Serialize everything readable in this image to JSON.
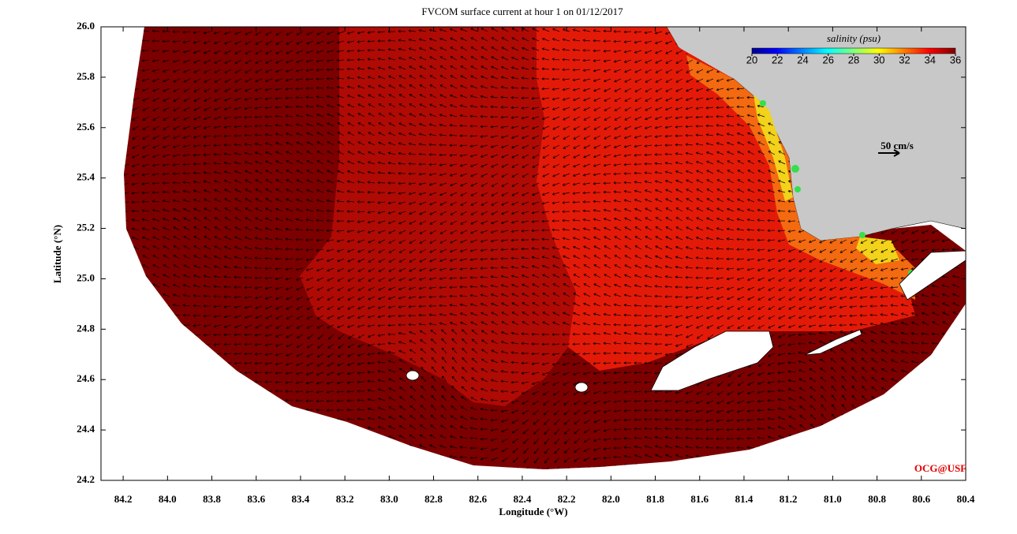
{
  "chart_data": {
    "type": "quiver",
    "title": "FVCOM surface current at hour 1 on 01/12/2017",
    "xlabel": "Longitude (°W)",
    "ylabel": "Latitude (°N)",
    "xlim": [
      84.3,
      80.4
    ],
    "xticks": [
      84.2,
      {
        "value": 84,
        "label": "84.0"
      },
      83.8,
      83.6,
      83.4,
      83.2,
      {
        "value": 83,
        "label": "83.0"
      },
      82.8,
      82.6,
      82.4,
      82.2,
      {
        "value": 82,
        "label": "82.0"
      },
      81.8,
      81.6,
      81.4,
      81.2,
      {
        "value": 81,
        "label": "81.0"
      },
      80.8,
      80.6,
      80.4
    ],
    "ylim": [
      24.2,
      26.0
    ],
    "yticks": [
      24.2,
      24.4,
      24.6,
      24.8,
      {
        "value": 25,
        "label": "25.0"
      },
      25.2,
      25.4,
      25.6,
      25.8,
      {
        "value": 26,
        "label": "26.0"
      }
    ],
    "colorbar": {
      "title": "salinity (psu)",
      "lim": [
        20,
        36
      ],
      "ticks": [
        20,
        22,
        24,
        26,
        28,
        30,
        32,
        34,
        36
      ]
    },
    "scale_label": "50 cm/s",
    "credit": "OCG@USF"
  }
}
